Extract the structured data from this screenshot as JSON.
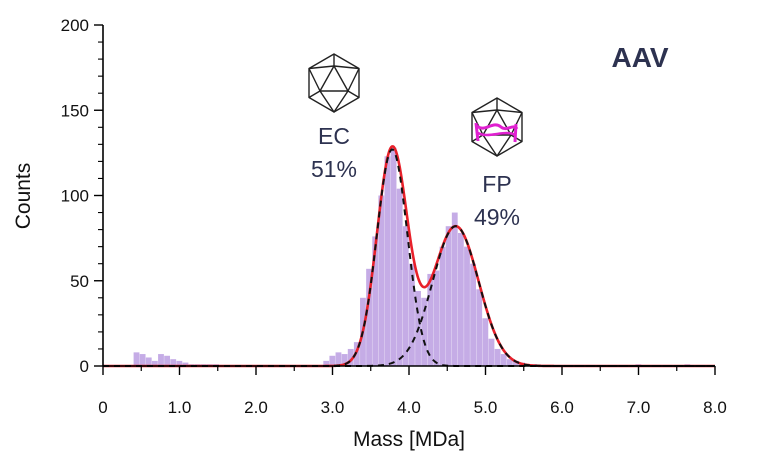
{
  "chart_data": {
    "type": "bar",
    "corner_label": "AAV",
    "xlabel": "Mass [MDa]",
    "ylabel": "Counts",
    "xlim": [
      0,
      8
    ],
    "ylim": [
      0,
      200
    ],
    "x_ticks": [
      0,
      1,
      2,
      3,
      4,
      5,
      6,
      7,
      8
    ],
    "x_tick_labels": [
      "0",
      "1.0",
      "2.0",
      "3.0",
      "4.0",
      "5.0",
      "6.0",
      "7.0",
      "8.0"
    ],
    "y_ticks": [
      0,
      50,
      100,
      150,
      200
    ],
    "y_tick_labels": [
      "0",
      "50",
      "100",
      "150",
      "200"
    ],
    "grid": false,
    "histogram": {
      "bin_width": 0.08,
      "color": "#c5ace6",
      "bins": [
        [
          0.4,
          8
        ],
        [
          0.48,
          7
        ],
        [
          0.56,
          5
        ],
        [
          0.64,
          3
        ],
        [
          0.72,
          7
        ],
        [
          0.8,
          6
        ],
        [
          0.88,
          4
        ],
        [
          0.96,
          3
        ],
        [
          1.04,
          2
        ],
        [
          1.12,
          1
        ],
        [
          1.2,
          1
        ],
        [
          1.28,
          1
        ],
        [
          1.36,
          1
        ],
        [
          1.44,
          1
        ],
        [
          2.88,
          3
        ],
        [
          2.96,
          6
        ],
        [
          3.04,
          8
        ],
        [
          3.12,
          7
        ],
        [
          3.2,
          10
        ],
        [
          3.28,
          14
        ],
        [
          3.36,
          40
        ],
        [
          3.44,
          57
        ],
        [
          3.52,
          76
        ],
        [
          3.6,
          100
        ],
        [
          3.68,
          123
        ],
        [
          3.76,
          128
        ],
        [
          3.84,
          104
        ],
        [
          3.92,
          82
        ],
        [
          4.0,
          60
        ],
        [
          4.08,
          44
        ],
        [
          4.16,
          40
        ],
        [
          4.24,
          54
        ],
        [
          4.32,
          56
        ],
        [
          4.4,
          70
        ],
        [
          4.48,
          82
        ],
        [
          4.56,
          90
        ],
        [
          4.64,
          78
        ],
        [
          4.72,
          70
        ],
        [
          4.8,
          60
        ],
        [
          4.88,
          45
        ],
        [
          4.96,
          28
        ],
        [
          5.04,
          16
        ],
        [
          5.12,
          10
        ],
        [
          5.2,
          7
        ],
        [
          5.28,
          4
        ],
        [
          5.36,
          3
        ],
        [
          5.44,
          2
        ],
        [
          5.52,
          1
        ],
        [
          5.6,
          1
        ],
        [
          6.96,
          1
        ],
        [
          7.6,
          1
        ]
      ]
    },
    "fit_components": [
      {
        "label": "EC",
        "percent": "51%",
        "center": 3.78,
        "sigma": 0.2,
        "amplitude": 127
      },
      {
        "label": "FP",
        "percent": "49%",
        "center": 4.61,
        "sigma": 0.3,
        "amplitude": 82
      }
    ],
    "total_fit_color": "#e8202a",
    "component_line_style": "black dashed",
    "annotations": [
      {
        "icon": "icosahedron-icon",
        "name": "EC",
        "percent": "51%"
      },
      {
        "icon": "icosahedron-with-dna-icon",
        "name": "FP",
        "percent": "49%"
      }
    ],
    "accent_colors": {
      "genome": "#e020d0",
      "text": "#2d3250"
    }
  }
}
